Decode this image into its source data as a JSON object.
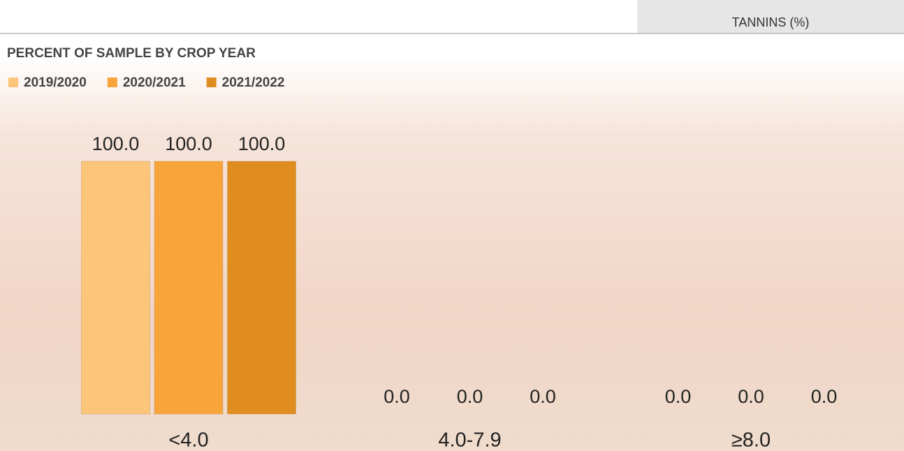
{
  "header": {
    "tab": "TANNINS (%)"
  },
  "chart_data": {
    "type": "bar",
    "title": "PERCENT OF SAMPLE BY CROP YEAR",
    "categories": [
      "<4.0",
      "4.0-7.9",
      "≥8.0"
    ],
    "series": [
      {
        "name": "2019/2020",
        "color": "#fcc67a",
        "values": [
          100,
          0,
          0
        ],
        "value_labels": [
          "100.0",
          "0.0",
          "0.0"
        ]
      },
      {
        "name": "2020/2021",
        "color": "#f7a43b",
        "values": [
          100,
          0,
          0
        ],
        "value_labels": [
          "100.0",
          "0.0",
          "0.0"
        ]
      },
      {
        "name": "2021/2022",
        "color": "#de8d1e",
        "values": [
          100,
          0,
          0
        ],
        "value_labels": [
          "100.0",
          "0.0",
          "0.0"
        ]
      }
    ],
    "ylim": [
      0,
      100
    ]
  }
}
